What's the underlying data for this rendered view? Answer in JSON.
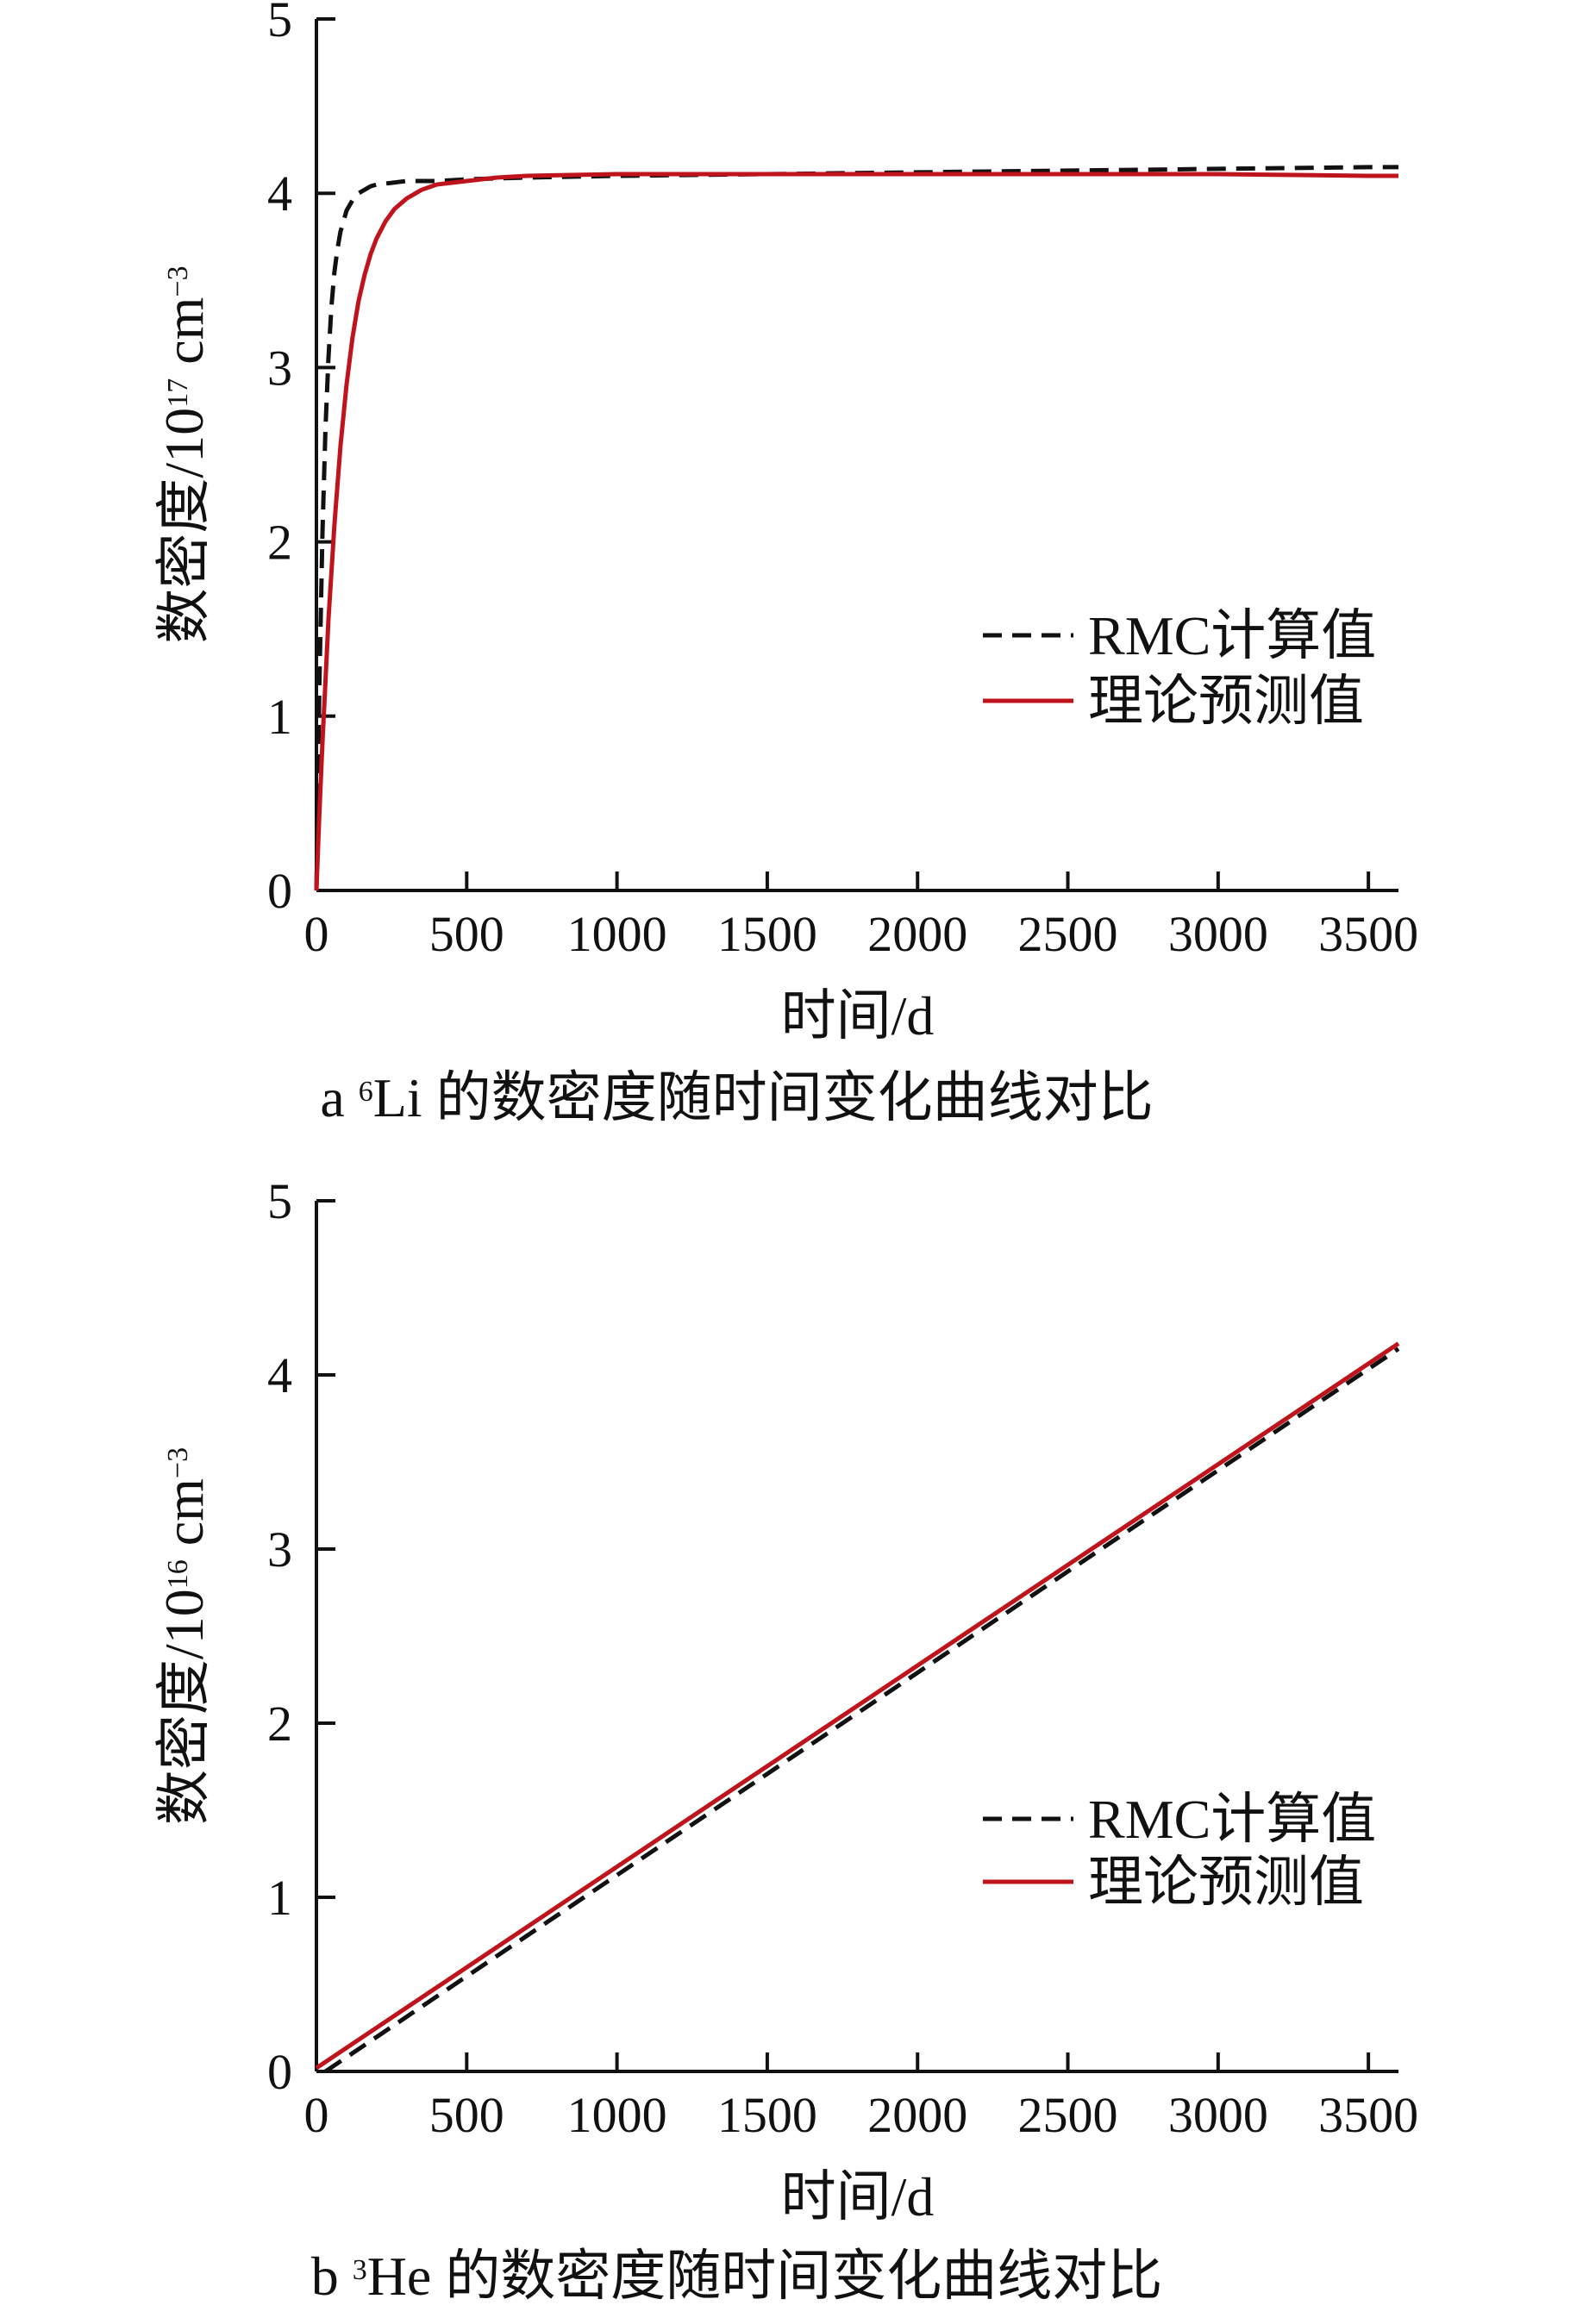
{
  "chart_data": [
    {
      "type": "line",
      "caption": {
        "letter": "a",
        "iso_sup": "6",
        "iso_sym": "Li",
        "text": " 的数密度随时间变化曲线对比"
      },
      "xlabel": "时间/d",
      "ylabel": {
        "text": "数密度/10",
        "exp": "17",
        "unit": " cm",
        "unit_exp": "−3"
      },
      "xlim": [
        0,
        3600
      ],
      "ylim": [
        0,
        5
      ],
      "xticks": [
        0,
        500,
        1000,
        1500,
        2000,
        2500,
        3000,
        3500
      ],
      "yticks": [
        0,
        1,
        2,
        3,
        4,
        5
      ],
      "grid": false,
      "legend_position": "center-right",
      "series": [
        {
          "name": "RMC计算值",
          "color": "#111111",
          "dash": true,
          "x": [
            0,
            10,
            20,
            30,
            40,
            50,
            60,
            70,
            80,
            100,
            120,
            140,
            160,
            180,
            200,
            250,
            300,
            400,
            500,
            700,
            1000,
            1500,
            2000,
            2500,
            3000,
            3500,
            3600
          ],
          "y": [
            0,
            1.2,
            2.05,
            2.65,
            3.05,
            3.35,
            3.55,
            3.68,
            3.78,
            3.9,
            3.96,
            4.0,
            4.02,
            4.04,
            4.05,
            4.06,
            4.07,
            4.07,
            4.08,
            4.09,
            4.1,
            4.11,
            4.12,
            4.13,
            4.14,
            4.15,
            4.15
          ]
        },
        {
          "name": "理论预测值",
          "color": "#c0141c",
          "dash": false,
          "x": [
            0,
            10,
            20,
            30,
            40,
            60,
            80,
            100,
            120,
            140,
            160,
            180,
            200,
            230,
            260,
            300,
            350,
            400,
            500,
            600,
            700,
            1000,
            1500,
            2000,
            2500,
            3000,
            3500,
            3600
          ],
          "y": [
            0,
            0.45,
            0.85,
            1.2,
            1.55,
            2.1,
            2.55,
            2.9,
            3.17,
            3.38,
            3.53,
            3.65,
            3.74,
            3.84,
            3.91,
            3.97,
            4.02,
            4.05,
            4.07,
            4.09,
            4.1,
            4.11,
            4.11,
            4.11,
            4.11,
            4.11,
            4.1,
            4.1
          ]
        }
      ]
    },
    {
      "type": "line",
      "caption": {
        "letter": "b",
        "iso_sup": "3",
        "iso_sym": "He",
        "text": " 的数密度随时间变化曲线对比"
      },
      "xlabel": "时间/d",
      "ylabel": {
        "text": "数密度/10",
        "exp": "16",
        "unit": " cm",
        "unit_exp": "−3"
      },
      "xlim": [
        0,
        3600
      ],
      "ylim": [
        0,
        5
      ],
      "xticks": [
        0,
        500,
        1000,
        1500,
        2000,
        2500,
        3000,
        3500
      ],
      "yticks": [
        0,
        1,
        2,
        3,
        4,
        5
      ],
      "grid": false,
      "legend_position": "center-right",
      "series": [
        {
          "name": "RMC计算值",
          "color": "#111111",
          "dash": true,
          "x": [
            30,
            3600
          ],
          "y": [
            0,
            4.15
          ]
        },
        {
          "name": "理论预测值",
          "color": "#c0141c",
          "dash": false,
          "x": [
            0,
            3600
          ],
          "y": [
            0.02,
            4.18
          ]
        }
      ]
    }
  ]
}
